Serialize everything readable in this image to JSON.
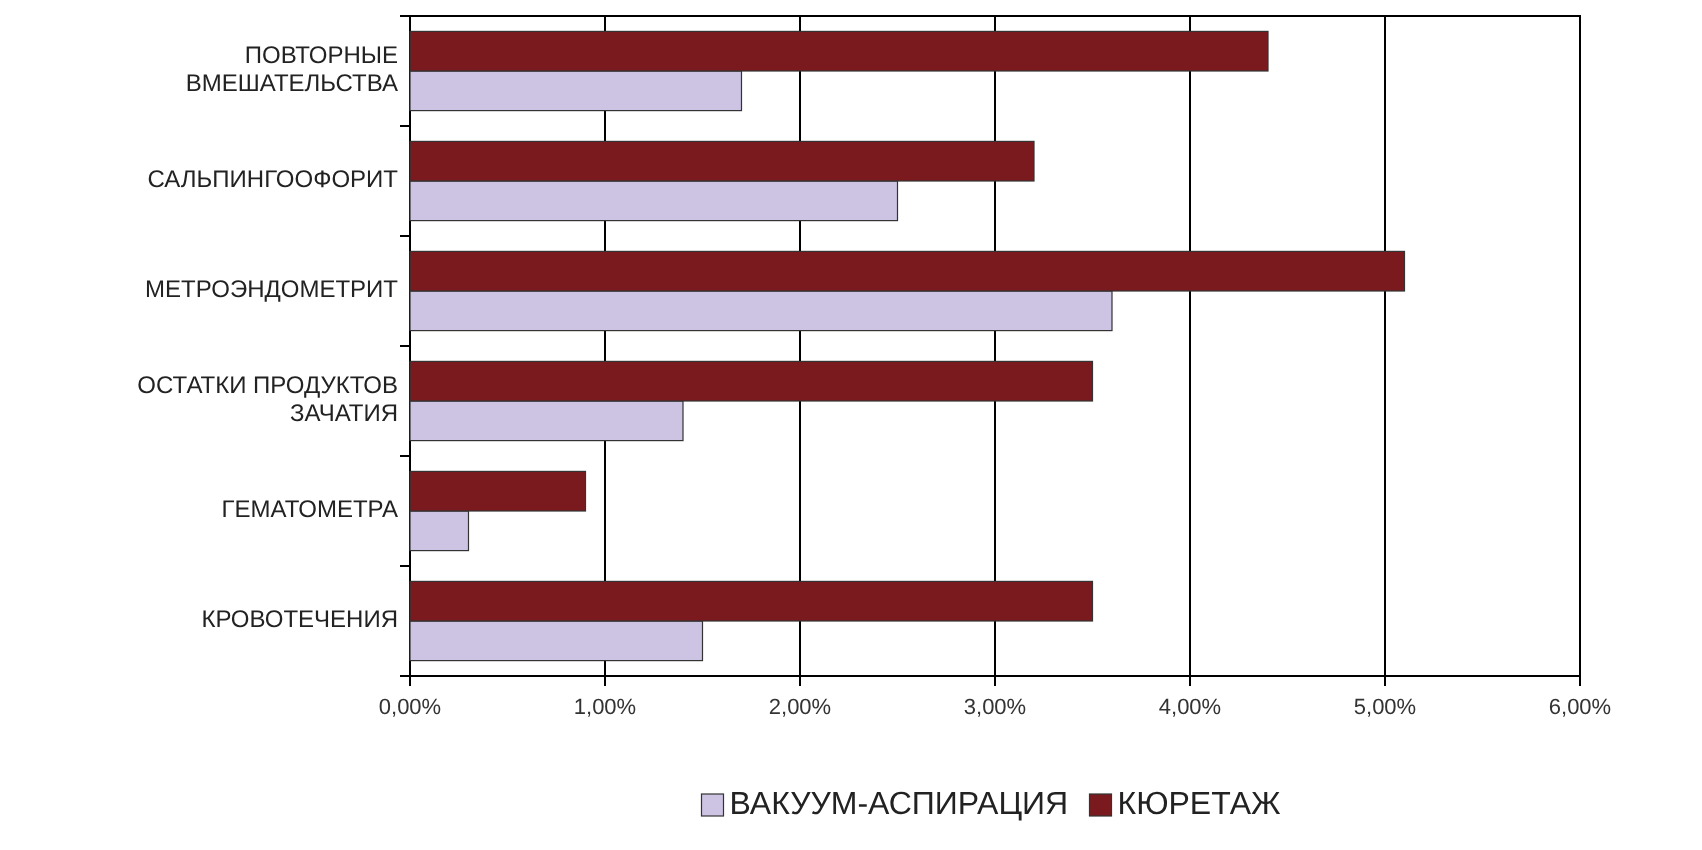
{
  "chart_data": {
    "type": "bar",
    "orientation": "horizontal",
    "categories": [
      "ПОВТОРНЫЕ ВМЕШАТЕЛЬСТВА",
      "САЛЬПИНГООФОРИТ",
      "МЕТРОЭНДОМЕТРИТ",
      "ОСТАТКИ ПРОДУКТОВ ЗАЧАТИЯ",
      "ГЕМАТОМЕТРА",
      "КРОВОТЕЧЕНИЯ"
    ],
    "series": [
      {
        "name": "ВАКУУМ-АСПИРАЦИЯ",
        "color": "#cdc3e3",
        "values": [
          1.7,
          2.5,
          3.6,
          1.4,
          0.3,
          1.5
        ]
      },
      {
        "name": "КЮРЕТАЖ",
        "color": "#7a1a1e",
        "values": [
          4.4,
          3.2,
          5.1,
          3.5,
          0.9,
          3.5
        ]
      }
    ],
    "xlim": [
      0,
      6
    ],
    "xticks": [
      {
        "value": 0,
        "label": "0,00%"
      },
      {
        "value": 1,
        "label": "1,00%"
      },
      {
        "value": 2,
        "label": "2,00%"
      },
      {
        "value": 3,
        "label": "3,00%"
      },
      {
        "value": 4,
        "label": "4,00%"
      },
      {
        "value": 5,
        "label": "5,00%"
      },
      {
        "value": 6,
        "label": "6,00%"
      }
    ],
    "grid": "x",
    "legend": "bottom"
  }
}
